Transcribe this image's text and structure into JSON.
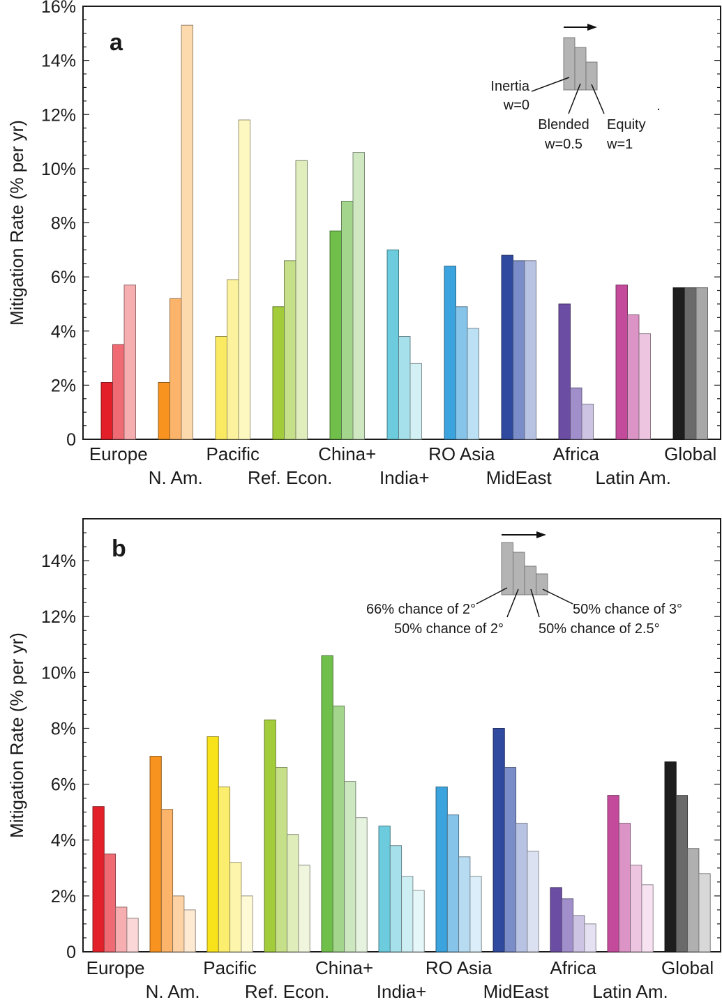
{
  "chart_data": [
    {
      "panel": "a",
      "type": "bar",
      "ylabel": "Mitigation Rate (% per yr)",
      "ylim": [
        0,
        16
      ],
      "yticks": [
        "0",
        "2%",
        "4%",
        "6%",
        "8%",
        "10%",
        "12%",
        "14%",
        "16%"
      ],
      "yticks_values": [
        0,
        2,
        4,
        6,
        8,
        10,
        12,
        14,
        16
      ],
      "categories": [
        "Europe",
        "N. Am.",
        "Pacific",
        "Ref. Econ.",
        "China+",
        "India+",
        "RO Asia",
        "MidEast",
        "Africa",
        "Latin Am.",
        "Global"
      ],
      "colors": {
        "Europe": [
          "#e3202a",
          "#ef6a72",
          "#f7aeb0"
        ],
        "N. Am.": [
          "#f7931e",
          "#fbb46a",
          "#fdd9ae"
        ],
        "Pacific": [
          "#faea62",
          "#fcf29e",
          "#fdf7c0"
        ],
        "Ref. Econ.": [
          "#a3cc3a",
          "#c6e08a",
          "#e0edbd"
        ],
        "China+": [
          "#6fbf4a",
          "#a3d68c",
          "#cfe8c2"
        ],
        "India+": [
          "#6ccbdc",
          "#a6e0ea",
          "#d3f0f5"
        ],
        "RO Asia": [
          "#3ba3dd",
          "#86c4ea",
          "#bde1f4"
        ],
        "MidEast": [
          "#2f4a9e",
          "#7b8dc9",
          "#b8c3e3"
        ],
        "Africa": [
          "#6b4ea3",
          "#a08fcb",
          "#cdc4e4"
        ],
        "Latin Am.": [
          "#c44b9b",
          "#dc93c6",
          "#edc5e1"
        ],
        "Global": [
          "#1e1e1e",
          "#6a6a6a",
          "#a8a8a8"
        ]
      },
      "series": [
        {
          "name": "Inertia w=0",
          "values": [
            2.1,
            2.1,
            3.8,
            4.9,
            7.7,
            7.0,
            6.4,
            6.8,
            5.0,
            5.7,
            5.6
          ]
        },
        {
          "name": "Blended w=0.5",
          "values": [
            3.5,
            5.2,
            5.9,
            6.6,
            8.8,
            3.8,
            4.9,
            6.6,
            1.9,
            4.6,
            5.6
          ]
        },
        {
          "name": "Equity w=1",
          "values": [
            5.7,
            15.3,
            11.8,
            10.3,
            10.6,
            2.8,
            4.1,
            6.6,
            1.3,
            3.9,
            5.6
          ]
        }
      ],
      "legend": {
        "labels": [
          {
            "line1": "Inertia",
            "line2": "w=0"
          },
          {
            "line1": "Blended",
            "line2": "w=0.5"
          },
          {
            "line1": "Equity",
            "line2": "w=1"
          }
        ],
        "dot": "."
      }
    },
    {
      "panel": "b",
      "type": "bar",
      "ylabel": "Mitigation Rate (% per yr)",
      "ylim": [
        0,
        15.5
      ],
      "yticks": [
        "0",
        "2%",
        "4%",
        "6%",
        "8%",
        "10%",
        "12%",
        "14%"
      ],
      "yticks_values": [
        0,
        2,
        4,
        6,
        8,
        10,
        12,
        14
      ],
      "categories": [
        "Europe",
        "N. Am.",
        "Pacific",
        "Ref. Econ.",
        "China+",
        "India+",
        "RO Asia",
        "MidEast",
        "Africa",
        "Latin Am.",
        "Global"
      ],
      "colors": {
        "Europe": [
          "#e3202a",
          "#ef6a72",
          "#f7aeb0",
          "#fbd7d8"
        ],
        "N. Am.": [
          "#f7931e",
          "#fbb46a",
          "#fdd3a6",
          "#fee9d2"
        ],
        "Pacific": [
          "#f8e21a",
          "#fbee6e",
          "#fdf5ac",
          "#fefad6"
        ],
        "Ref. Econ.": [
          "#a3cc3a",
          "#c6e08a",
          "#dfedbb",
          "#eff6dd"
        ],
        "China+": [
          "#6fbf4a",
          "#a3d68c",
          "#cde8c0",
          "#e6f4df"
        ],
        "India+": [
          "#6ccbdc",
          "#a6e0ea",
          "#cdeef3",
          "#e6f7f9"
        ],
        "RO Asia": [
          "#3ba3dd",
          "#86c4ea",
          "#b7dcf2",
          "#dbeef9"
        ],
        "MidEast": [
          "#2f4a9e",
          "#7b8dc9",
          "#b8c3e3",
          "#dce1f1"
        ],
        "Africa": [
          "#6b4ea3",
          "#a08fcb",
          "#cdc4e4",
          "#e6e1f2"
        ],
        "Latin Am.": [
          "#c44b9b",
          "#dc93c6",
          "#edc5e1",
          "#f6e2f0"
        ],
        "Global": [
          "#1e1e1e",
          "#6a6a6a",
          "#b0b0b0",
          "#d8d8d8"
        ]
      },
      "series": [
        {
          "name": "66% chance of 2°",
          "values": [
            5.2,
            7.0,
            7.7,
            8.3,
            10.6,
            4.5,
            5.9,
            8.0,
            2.3,
            5.6,
            6.8
          ]
        },
        {
          "name": "50% chance of 2°",
          "values": [
            3.5,
            5.1,
            5.9,
            6.6,
            8.8,
            3.8,
            4.9,
            6.6,
            1.9,
            4.6,
            5.6
          ]
        },
        {
          "name": "50% chance of 2.5°",
          "values": [
            1.6,
            2.0,
            3.2,
            4.2,
            6.1,
            2.7,
            3.4,
            4.6,
            1.3,
            3.1,
            3.7
          ]
        },
        {
          "name": "50% chance of 3°",
          "values": [
            1.2,
            1.5,
            2.0,
            3.1,
            4.8,
            2.2,
            2.7,
            3.6,
            1.0,
            2.4,
            2.8
          ]
        }
      ],
      "legend": {
        "labels": [
          {
            "line1": "66% chance of 2°"
          },
          {
            "line1": "50% chance of 2°"
          },
          {
            "line1": "50% chance of 2.5°"
          },
          {
            "line1": "50% chance of 3°"
          }
        ]
      }
    }
  ]
}
